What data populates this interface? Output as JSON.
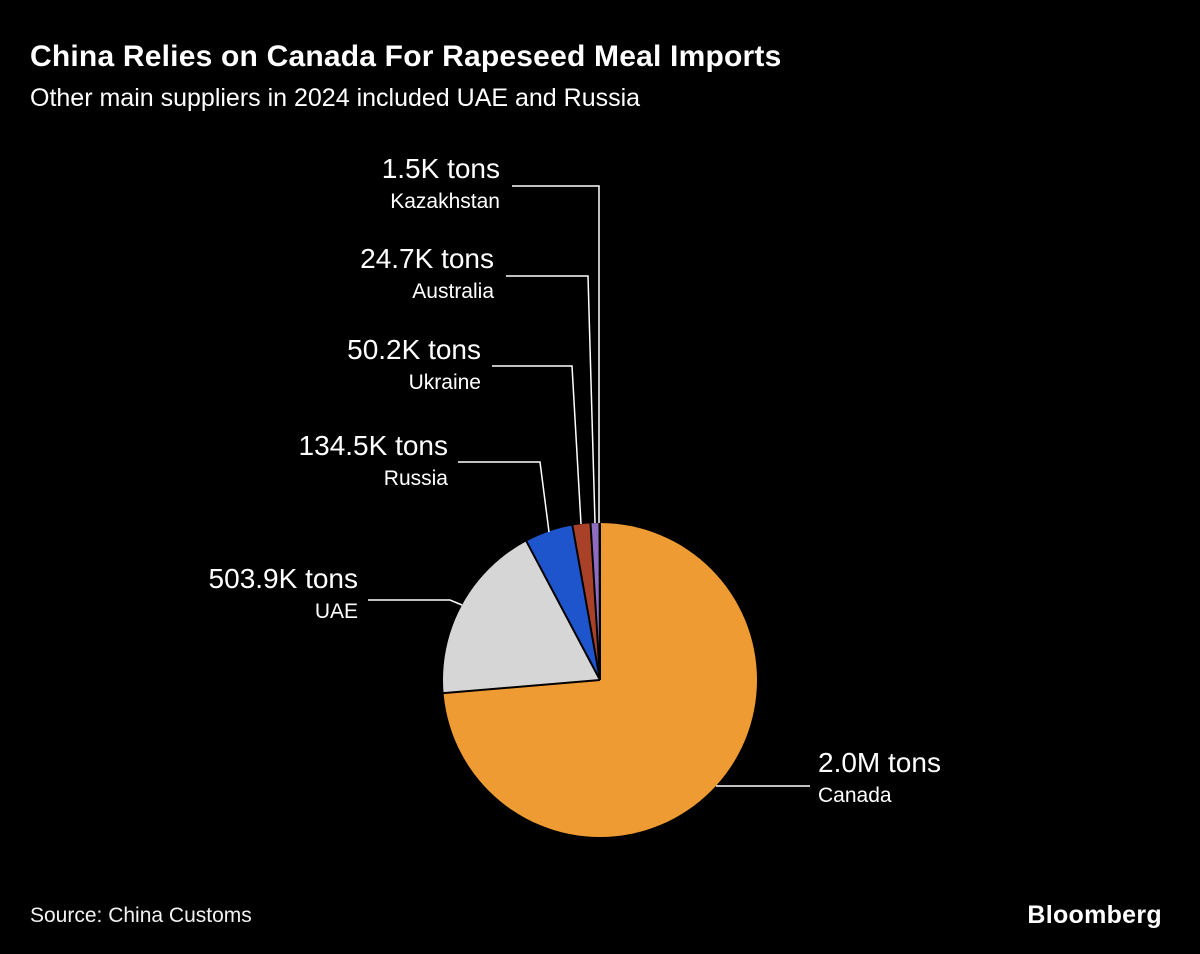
{
  "header": {
    "title": "China Relies on Canada For Rapeseed Meal Imports",
    "subtitle": "Other main suppliers in 2024 included UAE and Russia"
  },
  "footer": {
    "source": "Source: China Customs",
    "brand": "Bloomberg"
  },
  "chart_data": {
    "type": "pie",
    "title": "China Relies on Canada For Rapeseed Meal Imports",
    "subtitle": "Other main suppliers in 2024 included UAE and Russia",
    "unit": "tons",
    "year": "2024",
    "start_angle_deg": 0,
    "direction": "clockwise",
    "slices": [
      {
        "country": "Canada",
        "value_label": "2.0M tons",
        "value_tons": 2000000,
        "color": "#ef9b33"
      },
      {
        "country": "UAE",
        "value_label": "503.9K tons",
        "value_tons": 503900,
        "color": "#d6d6d6"
      },
      {
        "country": "Russia",
        "value_label": "134.5K tons",
        "value_tons": 134500,
        "color": "#1f55cc"
      },
      {
        "country": "Ukraine",
        "value_label": "50.2K tons",
        "value_tons": 50200,
        "color": "#a94129"
      },
      {
        "country": "Australia",
        "value_label": "24.7K tons",
        "value_tons": 24700,
        "color": "#8e6cc0"
      },
      {
        "country": "Kazakhstan",
        "value_label": "1.5K tons",
        "value_tons": 1500,
        "color": "#c7a7dd"
      }
    ],
    "source": "Source: China Customs",
    "legend_position": "callout-labels"
  }
}
